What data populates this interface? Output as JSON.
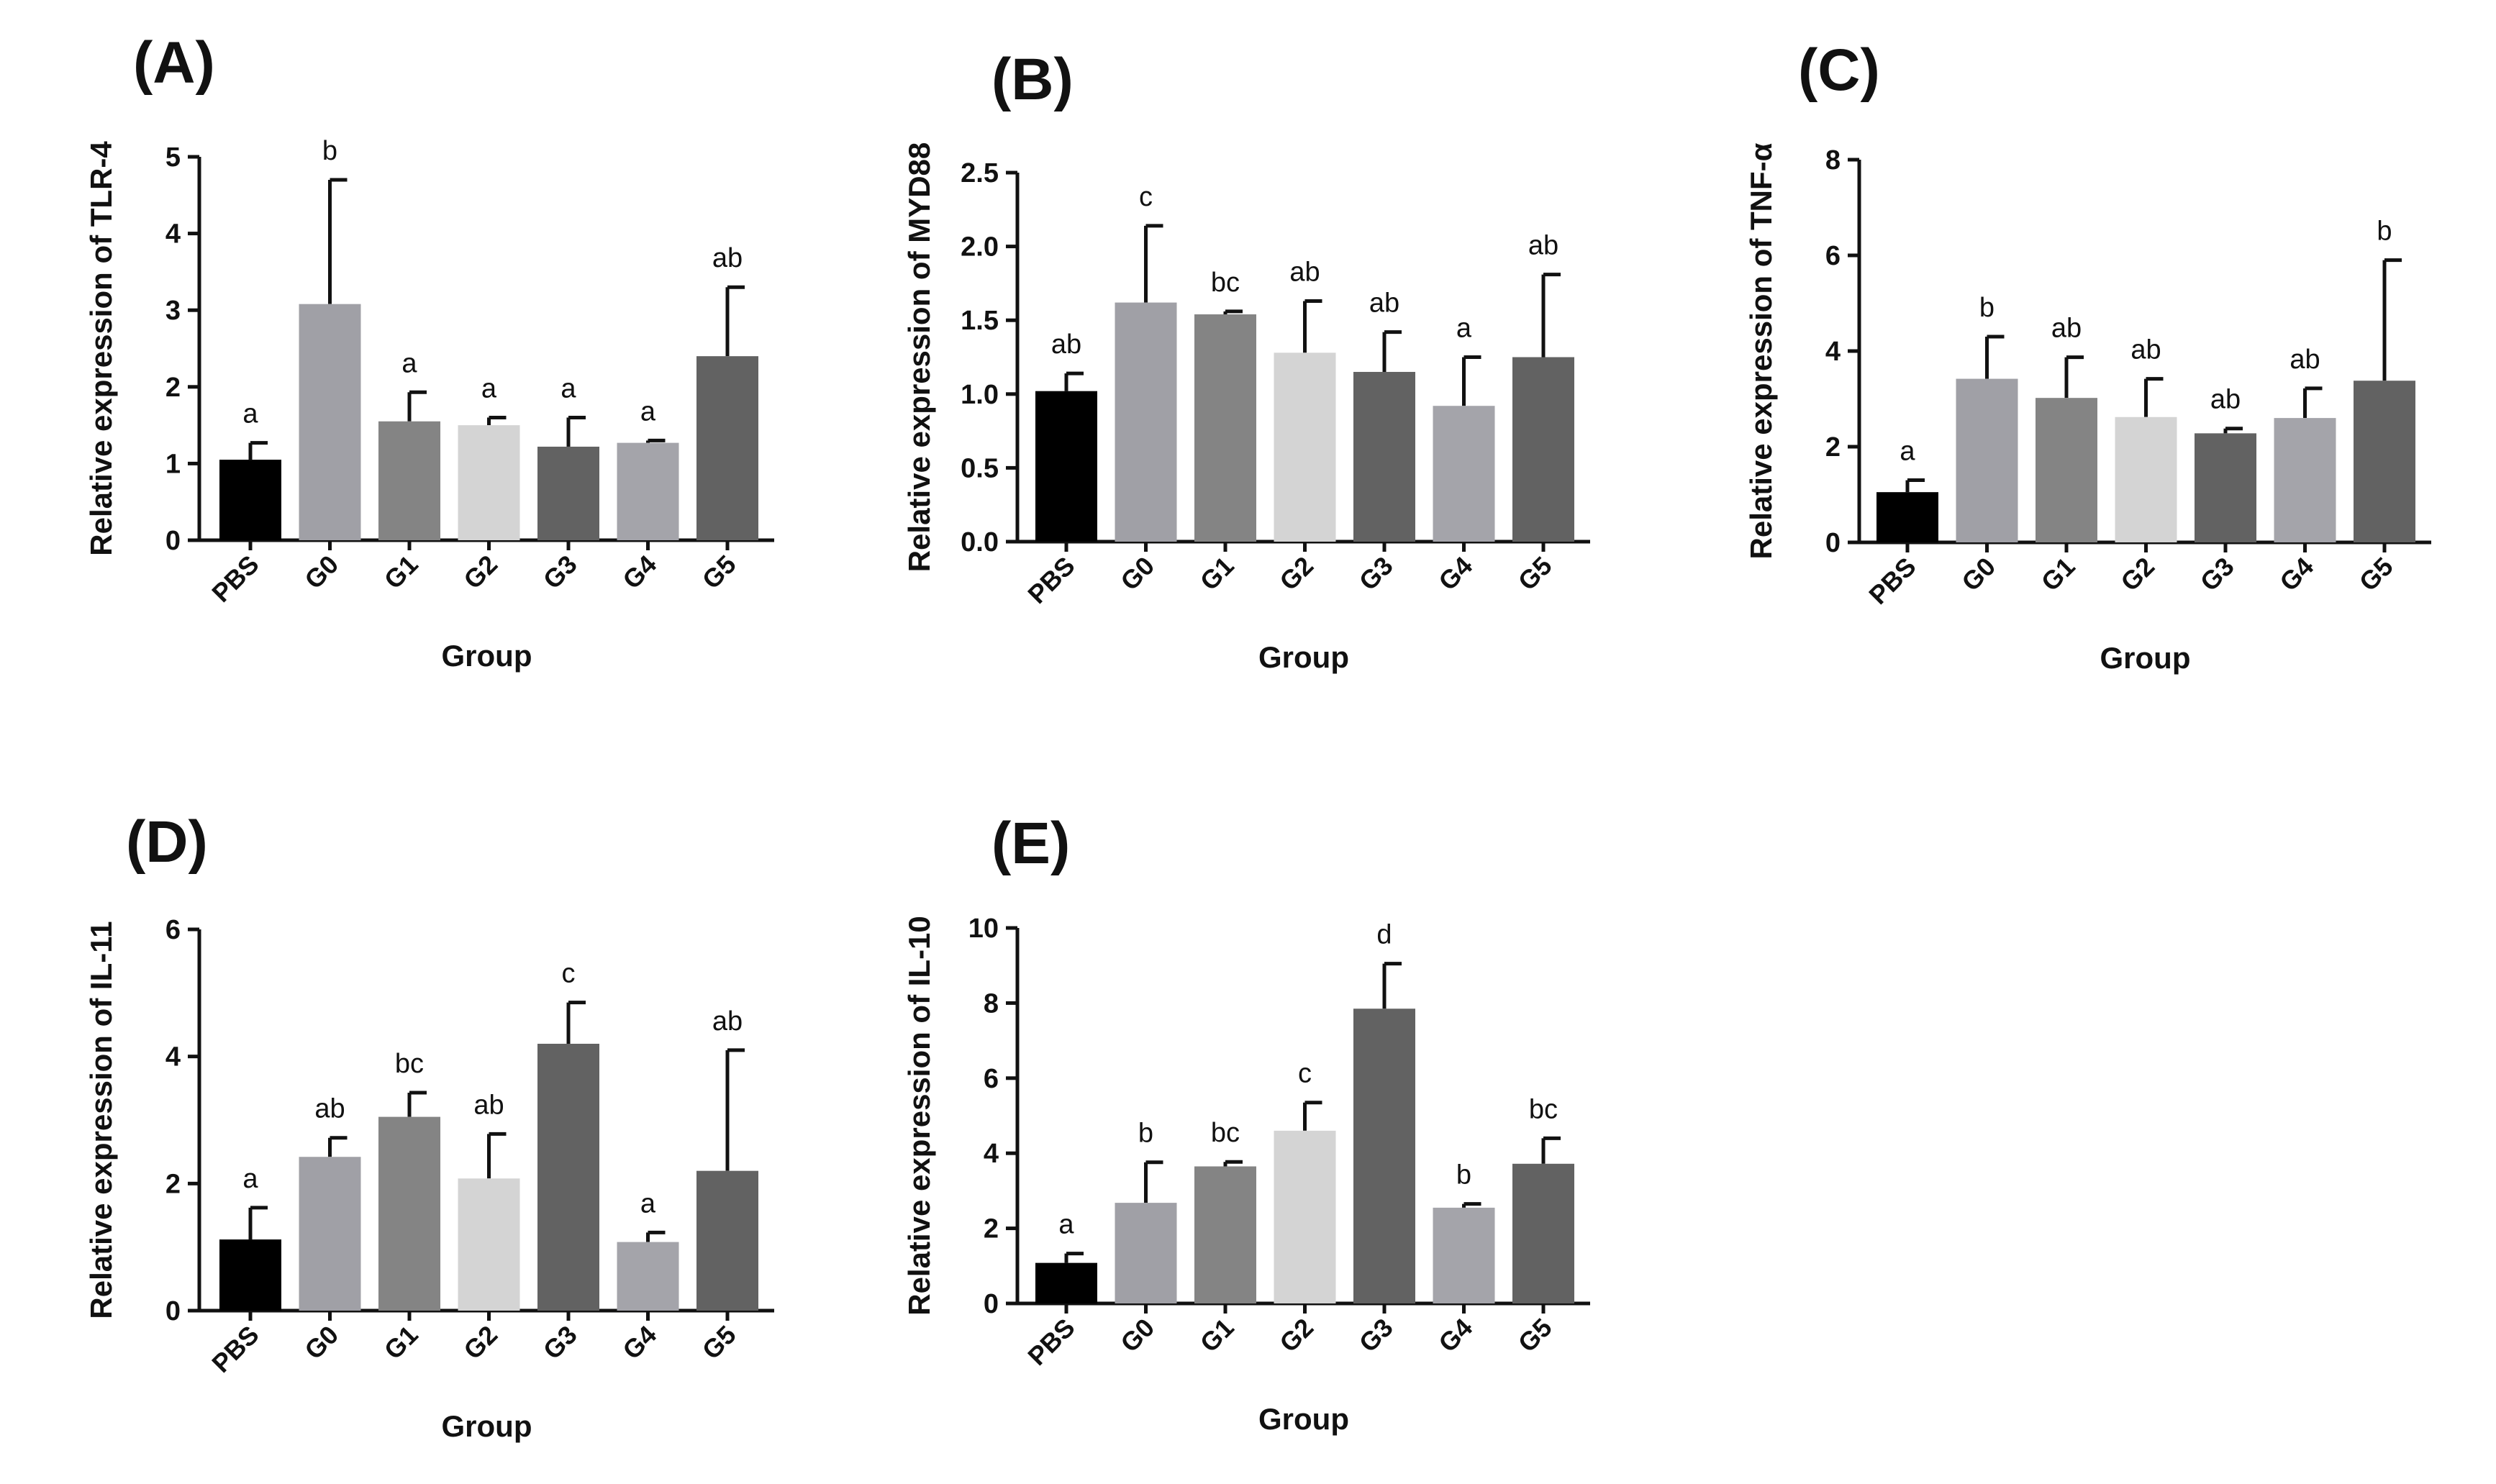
{
  "chart_data": [
    {
      "panel": "(A)",
      "type": "bar",
      "categories": [
        "PBS",
        "G0",
        "G1",
        "G2",
        "G3",
        "G4",
        "G5"
      ],
      "values": [
        1.05,
        3.08,
        1.55,
        1.5,
        1.22,
        1.27,
        2.4
      ],
      "errors": [
        0.22,
        1.62,
        0.38,
        0.1,
        0.38,
        0.03,
        0.9
      ],
      "letters": [
        "a",
        "b",
        "a",
        "a",
        "a",
        "a",
        "ab"
      ],
      "ylabel": "Relative expression of TLR-4",
      "xlabel": "Group",
      "ylim": [
        0,
        5
      ],
      "yticks": [
        "0",
        "1",
        "2",
        "3",
        "4",
        "5"
      ],
      "grid": false
    },
    {
      "panel": "(B)",
      "type": "bar",
      "categories": [
        "PBS",
        "G0",
        "G1",
        "G2",
        "G3",
        "G4",
        "G5"
      ],
      "values": [
        1.02,
        1.62,
        1.54,
        1.28,
        1.15,
        0.92,
        1.25
      ],
      "errors": [
        0.12,
        0.52,
        0.02,
        0.35,
        0.27,
        0.33,
        0.56
      ],
      "letters": [
        "ab",
        "c",
        "bc",
        "ab",
        "ab",
        "a",
        "ab"
      ],
      "ylabel": "Relative expression of MYD88",
      "xlabel": "Group",
      "ylim": [
        0,
        2.5
      ],
      "yticks": [
        "0.0",
        "0.5",
        "1.0",
        "1.5",
        "2.0",
        "2.5"
      ],
      "grid": false
    },
    {
      "panel": "(C)",
      "type": "bar",
      "categories": [
        "PBS",
        "G0",
        "G1",
        "G2",
        "G3",
        "G4",
        "G5"
      ],
      "values": [
        1.05,
        3.42,
        3.02,
        2.62,
        2.28,
        2.6,
        3.38
      ],
      "errors": [
        0.25,
        0.88,
        0.85,
        0.8,
        0.1,
        0.62,
        2.52
      ],
      "letters": [
        "a",
        "b",
        "ab",
        "ab",
        "ab",
        "ab",
        "b"
      ],
      "ylabel": "Relative expression of TNF-α",
      "xlabel": "Group",
      "ylim": [
        0,
        8
      ],
      "yticks": [
        "0",
        "2",
        "4",
        "6",
        "8"
      ],
      "grid": false
    },
    {
      "panel": "(D)",
      "type": "bar",
      "categories": [
        "PBS",
        "G0",
        "G1",
        "G2",
        "G3",
        "G4",
        "G5"
      ],
      "values": [
        1.12,
        2.42,
        3.05,
        2.08,
        4.2,
        1.08,
        2.2
      ],
      "errors": [
        0.5,
        0.3,
        0.38,
        0.7,
        0.65,
        0.15,
        1.9
      ],
      "letters": [
        "a",
        "ab",
        "bc",
        "ab",
        "c",
        "a",
        "ab"
      ],
      "ylabel": "Relative expression of IL-11",
      "xlabel": "Group",
      "ylim": [
        0,
        6
      ],
      "yticks": [
        "0",
        "2",
        "4",
        "6"
      ],
      "grid": false
    },
    {
      "panel": "(E)",
      "type": "bar",
      "categories": [
        "PBS",
        "G0",
        "G1",
        "G2",
        "G3",
        "G4",
        "G5"
      ],
      "values": [
        1.08,
        2.68,
        3.65,
        4.6,
        7.85,
        2.55,
        3.72
      ],
      "errors": [
        0.25,
        1.08,
        0.12,
        0.75,
        1.2,
        0.1,
        0.68
      ],
      "letters": [
        "a",
        "b",
        "bc",
        "c",
        "d",
        "b",
        "bc"
      ],
      "ylabel": "Relative expression of IL-10",
      "xlabel": "Group",
      "ylim": [
        0,
        10
      ],
      "yticks": [
        "0",
        "2",
        "4",
        "6",
        "8",
        "10"
      ],
      "grid": false
    }
  ],
  "bar_colors": [
    "#000000",
    "#a0a0a6",
    "#848484",
    "#d4d4d4",
    "#626262",
    "#a4a4aa",
    "#626262"
  ]
}
